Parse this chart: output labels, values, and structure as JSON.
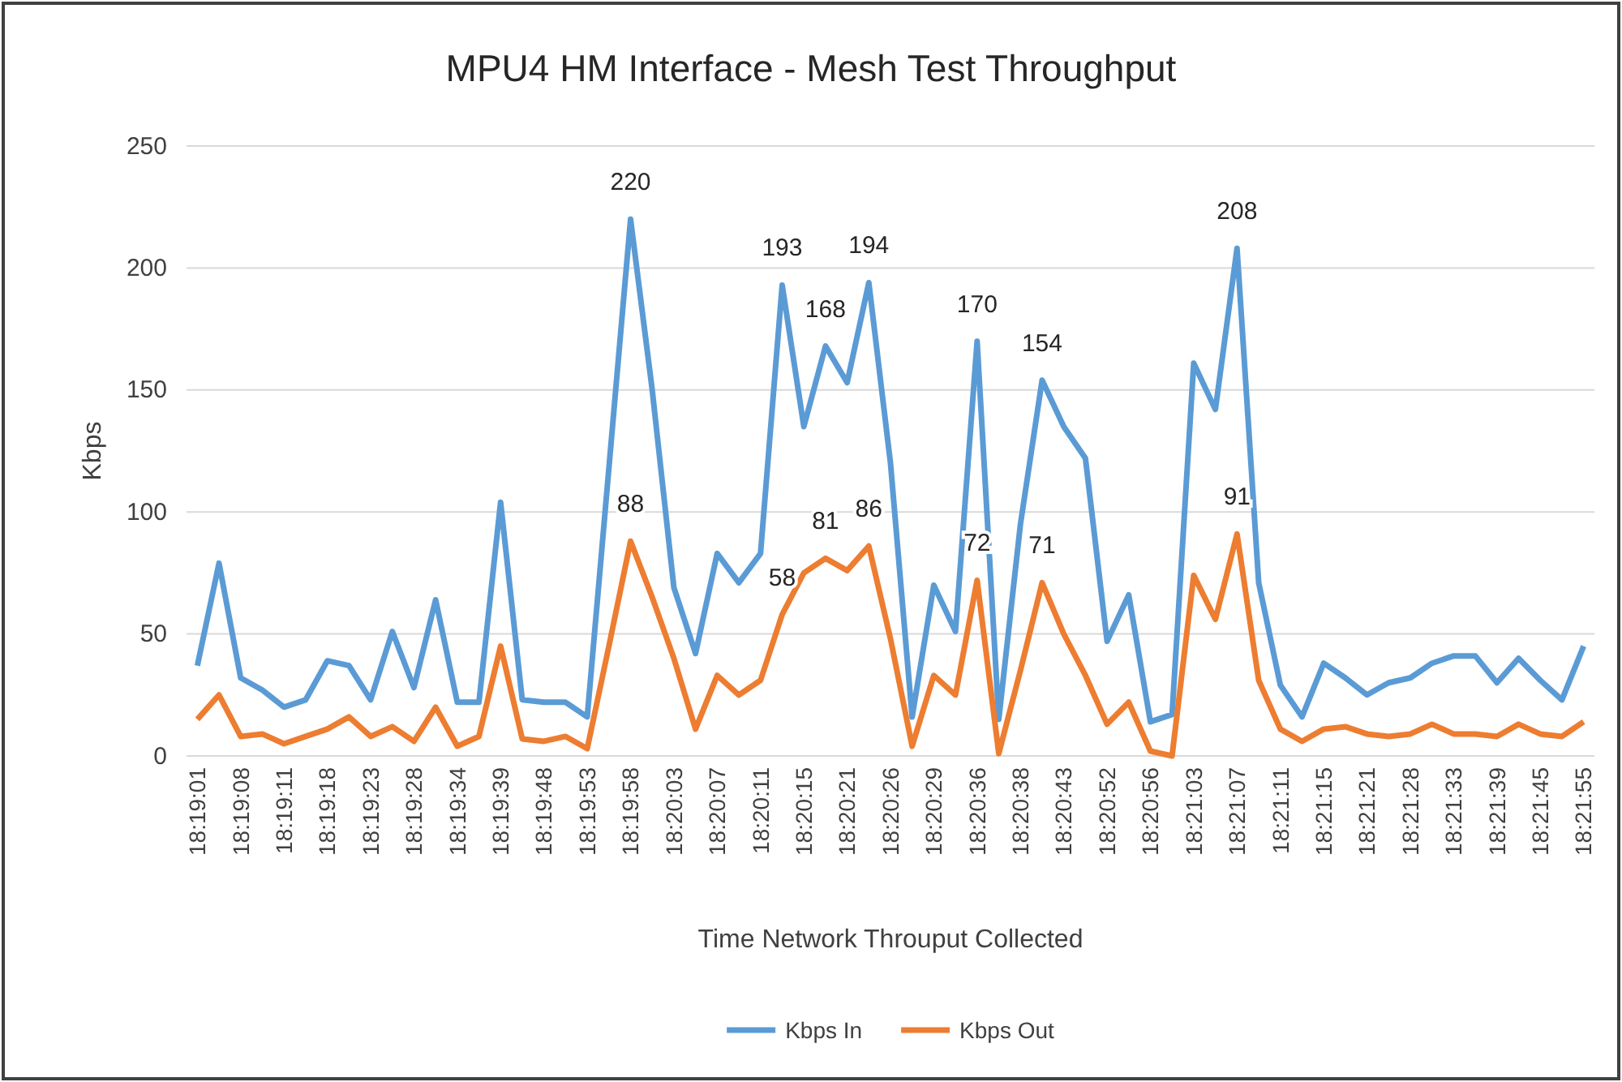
{
  "chart_data": {
    "type": "line",
    "title": "MPU4 HM Interface - Mesh Test Throughput",
    "xlabel": "Time Network Throuput Collected",
    "ylabel": "Kbps",
    "categories": [
      "18:19:01",
      null,
      "18:19:08",
      null,
      "18:19:11",
      null,
      "18:19:18",
      null,
      "18:19:23",
      null,
      "18:19:28",
      null,
      "18:19:34",
      null,
      "18:19:39",
      null,
      "18:19:48",
      null,
      "18:19:53",
      null,
      "18:19:58",
      null,
      "18:20:03",
      null,
      "18:20:07",
      null,
      "18:20:11",
      null,
      "18:20:15",
      null,
      "18:20:21",
      null,
      "18:20:26",
      null,
      "18:20:29",
      null,
      "18:20:36",
      null,
      "18:20:38",
      null,
      "18:20:43",
      null,
      "18:20:52",
      null,
      "18:20:56",
      null,
      "18:21:03",
      null,
      "18:21:07",
      null,
      "18:21:11",
      null,
      "18:21:15",
      null,
      "18:21:21",
      null,
      "18:21:28",
      null,
      "18:21:33",
      null,
      "18:21:39",
      null,
      "18:21:45",
      null,
      "18:21:55"
    ],
    "series": [
      {
        "name": "Kbps In",
        "color": "#5b9bd5",
        "values": [
          37,
          79,
          32,
          27,
          20,
          23,
          39,
          37,
          23,
          51,
          28,
          64,
          22,
          22,
          104,
          23,
          22,
          22,
          16,
          118,
          220,
          150,
          69,
          42,
          83,
          71,
          83,
          193,
          135,
          168,
          153,
          194,
          120,
          16,
          70,
          51,
          170,
          15,
          95,
          154,
          135,
          122,
          47,
          66,
          14,
          17,
          161,
          142,
          208,
          71,
          29,
          16,
          38,
          32,
          25,
          30,
          32,
          38,
          41,
          41,
          30,
          40,
          31,
          23,
          45
        ],
        "value_labels": [
          null,
          null,
          null,
          null,
          null,
          null,
          null,
          null,
          null,
          null,
          null,
          null,
          null,
          null,
          null,
          null,
          null,
          null,
          null,
          null,
          "220",
          null,
          null,
          null,
          null,
          null,
          null,
          "193",
          null,
          "168",
          null,
          "194",
          null,
          null,
          null,
          null,
          "170",
          null,
          null,
          "154",
          null,
          null,
          null,
          null,
          null,
          null,
          null,
          null,
          "208",
          null,
          null,
          null,
          null,
          null,
          null,
          null,
          null,
          null,
          null,
          null,
          null,
          null,
          null,
          null,
          null
        ]
      },
      {
        "name": "Kbps Out",
        "color": "#ed7d31",
        "values": [
          15,
          25,
          8,
          9,
          5,
          8,
          11,
          16,
          8,
          12,
          6,
          20,
          4,
          8,
          45,
          7,
          6,
          8,
          3,
          45,
          88,
          65,
          40,
          11,
          33,
          25,
          31,
          58,
          75,
          81,
          76,
          86,
          48,
          4,
          33,
          25,
          72,
          1,
          35,
          71,
          50,
          33,
          13,
          22,
          2,
          0,
          74,
          56,
          91,
          31,
          11,
          6,
          11,
          12,
          9,
          8,
          9,
          13,
          9,
          9,
          8,
          13,
          9,
          8,
          14
        ],
        "value_labels": [
          null,
          null,
          null,
          null,
          null,
          null,
          null,
          null,
          null,
          null,
          null,
          null,
          null,
          null,
          null,
          null,
          null,
          null,
          null,
          null,
          "88",
          null,
          null,
          null,
          null,
          null,
          null,
          "58",
          null,
          "81",
          null,
          "86",
          null,
          null,
          null,
          null,
          "72",
          null,
          null,
          "71",
          null,
          null,
          null,
          null,
          null,
          null,
          null,
          null,
          "91",
          null,
          null,
          null,
          null,
          null,
          null,
          null,
          null,
          null,
          null,
          null,
          null,
          null,
          null,
          null,
          null
        ]
      }
    ],
    "ylim": [
      0,
      250
    ],
    "yticks": [
      0,
      50,
      100,
      150,
      200,
      250
    ],
    "grid": "y",
    "legend": "bottom",
    "marker": "none",
    "line_style": "solid"
  }
}
